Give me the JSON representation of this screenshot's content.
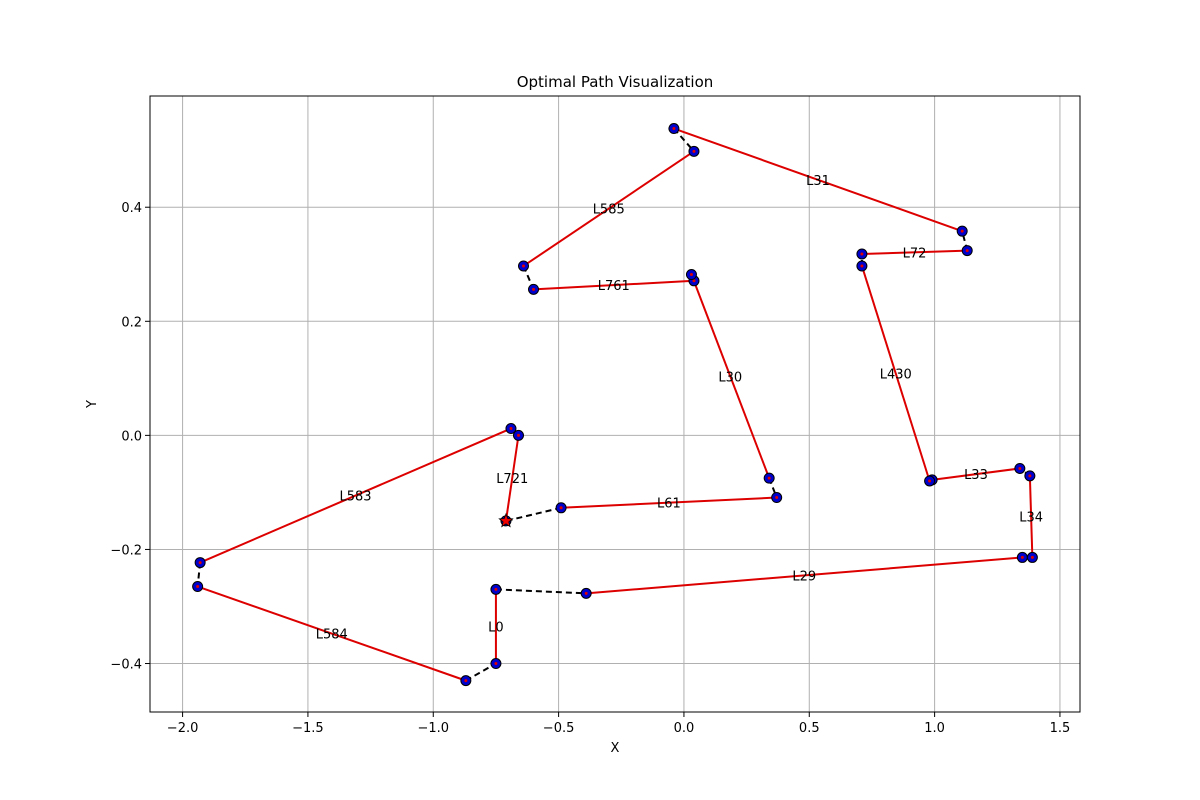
{
  "chart_data": {
    "type": "line",
    "title": "Optimal Path Visualization",
    "xlabel": "X",
    "ylabel": "Y",
    "xlim": [
      -2.13,
      1.58
    ],
    "ylim": [
      -0.485,
      0.595
    ],
    "xticks": [
      -2.0,
      -1.5,
      -1.0,
      -0.5,
      0.0,
      0.5,
      1.0,
      1.5
    ],
    "yticks": [
      -0.4,
      -0.2,
      0.0,
      0.2,
      0.4
    ],
    "xtick_labels": [
      "−2.0",
      "−1.5",
      "−1.0",
      "−0.5",
      "0.0",
      "0.5",
      "1.0",
      "1.5"
    ],
    "ytick_labels": [
      "−0.4",
      "−0.2",
      "0.0",
      "0.2",
      "0.4"
    ],
    "grid": true,
    "colors": {
      "segment": "#dd0000",
      "connector": "#000000",
      "point_fill": "#0000cc",
      "point_edge": "#000000",
      "start": "#ee0000"
    },
    "start_point": {
      "x": -0.71,
      "y": -0.15
    },
    "segments": [
      {
        "label": "L721",
        "from": [
          -0.71,
          -0.15
        ],
        "to": [
          -0.66,
          0.0
        ]
      },
      {
        "label": "L583",
        "from": [
          -0.69,
          0.012
        ],
        "to": [
          -1.93,
          -0.223
        ]
      },
      {
        "label": "L584",
        "from": [
          -1.94,
          -0.265
        ],
        "to": [
          -0.87,
          -0.43
        ]
      },
      {
        "label": "L0",
        "from": [
          -0.75,
          -0.4
        ],
        "to": [
          -0.75,
          -0.27
        ]
      },
      {
        "label": "L29",
        "from": [
          -0.39,
          -0.277
        ],
        "to": [
          1.35,
          -0.214
        ]
      },
      {
        "label": "L34",
        "from": [
          1.39,
          -0.214
        ],
        "to": [
          1.38,
          -0.071
        ]
      },
      {
        "label": "L33",
        "from": [
          1.34,
          -0.058
        ],
        "to": [
          0.99,
          -0.078
        ]
      },
      {
        "label": "L430",
        "from": [
          0.98,
          -0.08
        ],
        "to": [
          0.71,
          0.297
        ]
      },
      {
        "label": "L72",
        "from": [
          0.71,
          0.318
        ],
        "to": [
          1.13,
          0.324
        ]
      },
      {
        "label": "L31",
        "from": [
          1.11,
          0.358
        ],
        "to": [
          -0.04,
          0.538
        ]
      },
      {
        "label": "L585",
        "from": [
          0.04,
          0.498
        ],
        "to": [
          -0.64,
          0.297
        ]
      },
      {
        "label": "L761",
        "from": [
          -0.6,
          0.256
        ],
        "to": [
          0.04,
          0.271
        ]
      },
      {
        "label": "L30",
        "from": [
          0.03,
          0.282
        ],
        "to": [
          0.34,
          -0.075
        ]
      },
      {
        "label": "L61",
        "from": [
          0.37,
          -0.109
        ],
        "to": [
          -0.49,
          -0.127
        ]
      }
    ],
    "connectors": [
      {
        "from": [
          -0.66,
          0.0
        ],
        "to": [
          -0.69,
          0.012
        ]
      },
      {
        "from": [
          -1.93,
          -0.223
        ],
        "to": [
          -1.94,
          -0.265
        ]
      },
      {
        "from": [
          -0.87,
          -0.43
        ],
        "to": [
          -0.75,
          -0.4
        ]
      },
      {
        "from": [
          -0.75,
          -0.27
        ],
        "to": [
          -0.39,
          -0.277
        ]
      },
      {
        "from": [
          1.35,
          -0.214
        ],
        "to": [
          1.39,
          -0.214
        ]
      },
      {
        "from": [
          1.38,
          -0.071
        ],
        "to": [
          1.34,
          -0.058
        ]
      },
      {
        "from": [
          0.99,
          -0.078
        ],
        "to": [
          0.98,
          -0.08
        ]
      },
      {
        "from": [
          0.71,
          0.297
        ],
        "to": [
          0.71,
          0.318
        ]
      },
      {
        "from": [
          1.13,
          0.324
        ],
        "to": [
          1.11,
          0.358
        ]
      },
      {
        "from": [
          -0.04,
          0.538
        ],
        "to": [
          0.04,
          0.498
        ]
      },
      {
        "from": [
          -0.64,
          0.297
        ],
        "to": [
          -0.6,
          0.256
        ]
      },
      {
        "from": [
          0.04,
          0.271
        ],
        "to": [
          0.03,
          0.282
        ]
      },
      {
        "from": [
          0.34,
          -0.075
        ],
        "to": [
          0.37,
          -0.109
        ]
      },
      {
        "from": [
          -0.49,
          -0.127
        ],
        "to": [
          -0.71,
          -0.15
        ]
      }
    ]
  }
}
